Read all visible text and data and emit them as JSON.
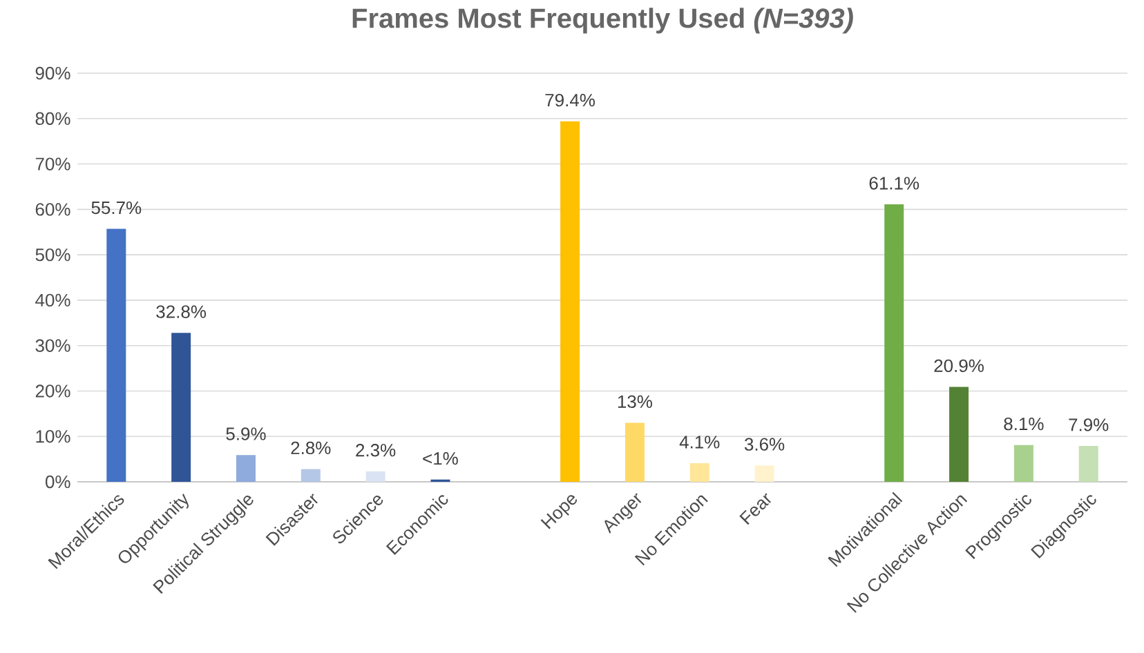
{
  "chart_data": {
    "type": "bar",
    "title": "Frames Most Frequently Used *(N=393)*",
    "categories": [
      "Moral/Ethics",
      "Opportunity",
      "Political Struggle",
      "Disaster",
      "Science",
      "Economic",
      null,
      "Hope",
      "Anger",
      "No Emotion",
      "Fear",
      null,
      "Motivational",
      "No Collective Action",
      "Prognostic",
      "Diagnostic"
    ],
    "values": [
      55.7,
      32.8,
      5.9,
      2.8,
      2.3,
      0.5,
      null,
      79.4,
      13,
      4.1,
      3.6,
      null,
      61.1,
      20.9,
      8.1,
      7.9
    ],
    "value_labels": [
      "55.7%",
      "32.8%",
      "5.9%",
      "2.8%",
      "2.3%",
      "<1%",
      null,
      "79.4%",
      "13%",
      "4.1%",
      "3.6%",
      null,
      "61.1%",
      "20.9%",
      "8.1%",
      "7.9%"
    ],
    "colors": [
      "#4472c4",
      "#2f5597",
      "#8faadc",
      "#b4c7e7",
      "#dae3f3",
      "#2f5597",
      null,
      "#ffc000",
      "#ffd966",
      "#ffe699",
      "#fff2cc",
      null,
      "#70ad47",
      "#548235",
      "#a9d18e",
      "#c5e0b4"
    ],
    "ylim": [
      0,
      90
    ],
    "yticks": [
      {
        "value": 0,
        "label": "0%"
      },
      {
        "value": 10,
        "label": "10%"
      },
      {
        "value": 20,
        "label": "20%"
      },
      {
        "value": 30,
        "label": "30%"
      },
      {
        "value": 40,
        "label": "40%"
      },
      {
        "value": 50,
        "label": "50%"
      },
      {
        "value": 60,
        "label": "60%"
      },
      {
        "value": 70,
        "label": "70%"
      },
      {
        "value": 80,
        "label": "80%"
      },
      {
        "value": 90,
        "label": "90%"
      }
    ],
    "grid": "y"
  }
}
